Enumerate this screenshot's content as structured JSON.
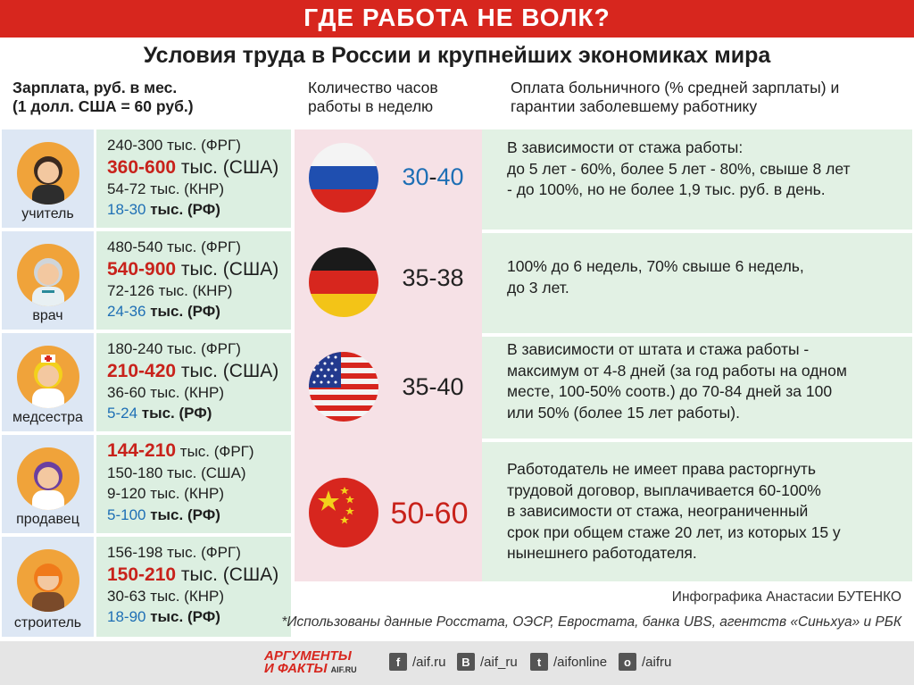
{
  "header": {
    "title": "ГДЕ РАБОТА НЕ ВОЛК?",
    "subtitle": "Условия труда в России и крупнейших экономиках мира"
  },
  "columns": {
    "salary_line1": "Зарплата, руб. в мес.",
    "salary_line2": "(1 долл. США = 60 руб.)",
    "hours_line1": "Количество часов",
    "hours_line2": "работы в неделю",
    "sick_line1": "Оплата больничного (% средней зарплаты) и",
    "sick_line2": "гарантии заболевшему работнику"
  },
  "professions": [
    {
      "label": "учитель",
      "frg": {
        "num": "240-300",
        "unit": " тыс. (ФРГ)"
      },
      "usa": {
        "num": "360-600",
        "unit": " тыс. (США)"
      },
      "knr": {
        "num": "54-72",
        "unit": " тыс. (КНР)"
      },
      "rf": {
        "num": "18-30",
        "unit": " тыс. (РФ)"
      }
    },
    {
      "label": "врач",
      "frg": {
        "num": "480-540",
        "unit": " тыс. (ФРГ)"
      },
      "usa": {
        "num": "540-900",
        "unit": " тыс. (США)"
      },
      "knr": {
        "num": "72-126",
        "unit": " тыс. (КНР)"
      },
      "rf": {
        "num": "24-36",
        "unit": " тыс. (РФ)"
      }
    },
    {
      "label": "медсестра",
      "frg": {
        "num": "180-240",
        "unit": " тыс. (ФРГ)"
      },
      "usa": {
        "num": "210-420",
        "unit": " тыс. (США)"
      },
      "knr": {
        "num": "36-60",
        "unit": " тыс. (КНР)"
      },
      "rf": {
        "num": "5-24",
        "unit": " тыс. (РФ)"
      }
    },
    {
      "label": "продавец",
      "frg": {
        "num": "144-210",
        "unit": " тыс. (ФРГ)"
      },
      "usa": {
        "num": "150-180",
        "unit": " тыс. (США)"
      },
      "knr": {
        "num": "9-120",
        "unit": " тыс. (КНР)"
      },
      "rf": {
        "num": "5-100",
        "unit": " тыс. (РФ)"
      }
    },
    {
      "label": "строитель",
      "frg": {
        "num": "156-198",
        "unit": " тыс. (ФРГ)"
      },
      "usa": {
        "num": "150-210",
        "unit": " тыс. (США)"
      },
      "knr": {
        "num": "30-63",
        "unit": " тыс. (КНР)"
      },
      "rf": {
        "num": "18-90",
        "unit": " тыс. (РФ)"
      }
    }
  ],
  "countries": [
    {
      "flag": "russia-flag-icon",
      "hours_a": "30",
      "hours_sep": "-",
      "hours_b": "40",
      "cond": [
        "В зависимости от стажа работы:",
        "до 5 лет - 60%, более 5 лет - 80%, свыше 8 лет",
        "- до 100%, но не более 1,9 тыс. руб. в день."
      ]
    },
    {
      "flag": "germany-flag-icon",
      "hours_a": "35",
      "hours_sep": "-",
      "hours_b": "38",
      "cond": [
        "100% до 6 недель, 70% свыше 6 недель,",
        "до 3 лет."
      ]
    },
    {
      "flag": "usa-flag-icon",
      "hours_a": "35",
      "hours_sep": "-",
      "hours_b": "40",
      "cond": [
        "В зависимости от штата и стажа работы -",
        "максимум от 4-8 дней (за год работы на одном",
        "месте, 100-50% соотв.) до 70-84 дней за 100",
        "или 50% (более 15 лет работы)."
      ]
    },
    {
      "flag": "china-flag-icon",
      "hours_a": "50",
      "hours_sep": "-",
      "hours_b": "60",
      "cond": [
        "Работодатель не имеет права расторгнуть",
        "трудовой договор, выплачивается 60-100%",
        "в зависимости от стажа, неограниченный",
        "срок при общем стаже 20 лет, из которых 15 у",
        "нынешнего работодателя."
      ]
    }
  ],
  "credit": "Инфографика Анастасии БУТЕНКО",
  "sources": "*Использованы данные Росстата, ОЭСР, Евростата, банка UBS, агентств «Синьхуа» и РБК",
  "footer": {
    "logo_line1": "АРГУМЕНТЫ",
    "logo_line2": "И ФАКТЫ",
    "logo_site": "AIF.RU",
    "fb": "/aif.ru",
    "vk": "/aif_ru",
    "tw": "/aifonline",
    "ok": "/aifru"
  },
  "colors": {
    "accent_red": "#d7261e",
    "rf_blue": "#1e6fb5"
  }
}
